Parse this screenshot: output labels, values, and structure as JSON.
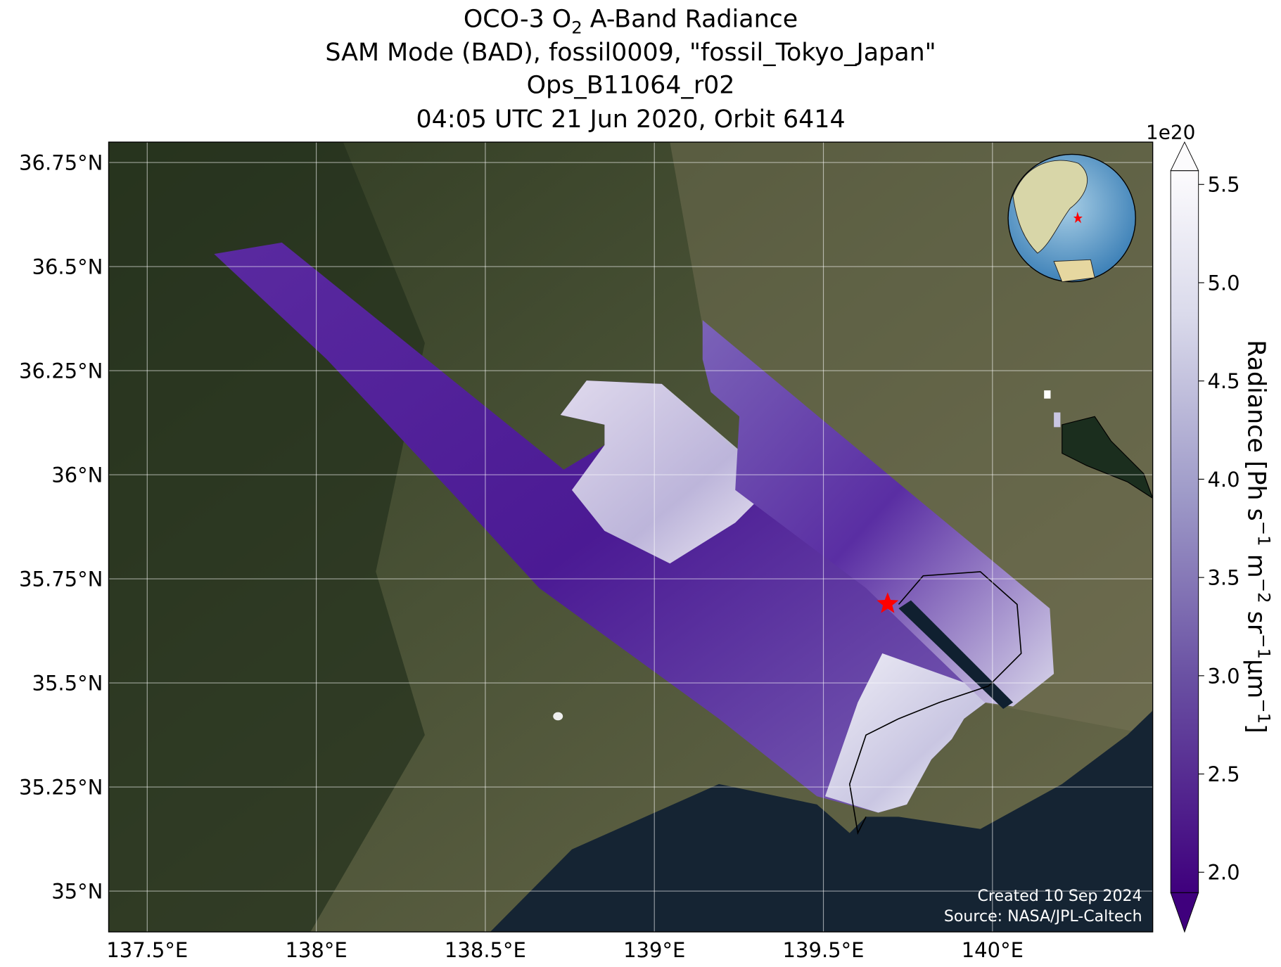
{
  "title": {
    "line1_prefix": "OCO-3 O",
    "line1_sub": "2",
    "line1_suffix": " A-Band Radiance",
    "line2": "SAM Mode (BAD), fossil0009, \"fossil_Tokyo_Japan\"",
    "line3": "Ops_B11064_r02",
    "line4": "04:05 UTC 21 Jun 2020, Orbit 6414"
  },
  "map": {
    "xlim": [
      137.386,
      140.474
    ],
    "ylim": [
      34.902,
      36.799
    ],
    "xticks": [
      {
        "value": 137.5,
        "label": "137.5°E"
      },
      {
        "value": 138,
        "label": "138°E"
      },
      {
        "value": 138.5,
        "label": "138.5°E"
      },
      {
        "value": 139,
        "label": "139°E"
      },
      {
        "value": 139.5,
        "label": "139.5°E"
      },
      {
        "value": 140,
        "label": "140°E"
      }
    ],
    "yticks": [
      {
        "value": 35,
        "label": "35°N"
      },
      {
        "value": 35.25,
        "label": "35.25°N"
      },
      {
        "value": 35.5,
        "label": "35.5°N"
      },
      {
        "value": 35.75,
        "label": "35.75°N"
      },
      {
        "value": 36,
        "label": "36°N"
      },
      {
        "value": 36.25,
        "label": "36.25°N"
      },
      {
        "value": 36.5,
        "label": "36.5°N"
      },
      {
        "value": 36.75,
        "label": "36.75°N"
      }
    ],
    "grid": true,
    "target": {
      "lon": 139.69,
      "lat": 35.69
    }
  },
  "colorbar": {
    "scale_label": "1e20",
    "lim": [
      1.896,
      5.57
    ],
    "ticks": [
      {
        "value": 2,
        "label": "2.0"
      },
      {
        "value": 2.5,
        "label": "2.5"
      },
      {
        "value": 3,
        "label": "3.0"
      },
      {
        "value": 3.5,
        "label": "3.5"
      },
      {
        "value": 4,
        "label": "4.0"
      },
      {
        "value": 4.5,
        "label": "4.5"
      },
      {
        "value": 5,
        "label": "5.0"
      },
      {
        "value": 5.5,
        "label": "5.5"
      }
    ],
    "label_parts": [
      "Radiance [Ph s",
      "−1",
      " m",
      "−2",
      " sr",
      "−1",
      "μm",
      "−1",
      "]"
    ]
  },
  "credits": [
    "Created 10 Sep 2024",
    "Source: NASA/JPL-Caltech"
  ]
}
